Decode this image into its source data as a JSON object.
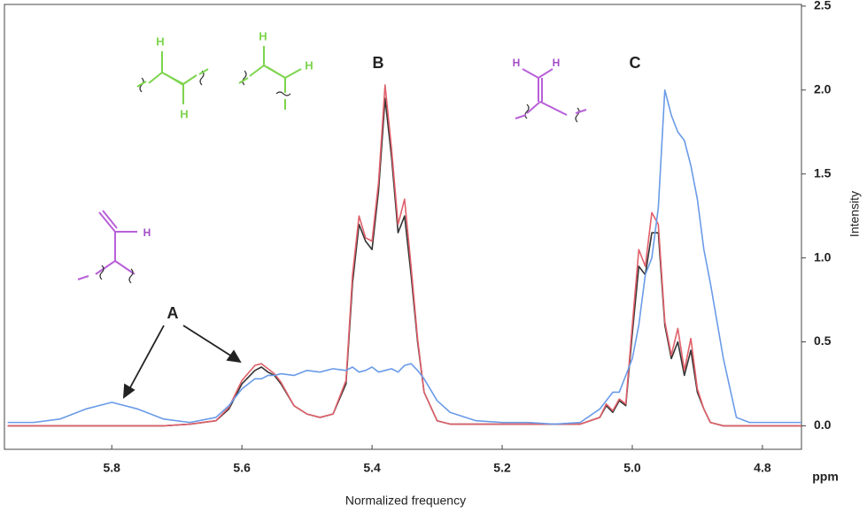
{
  "chart_data": {
    "type": "line",
    "x": [
      5.96,
      5.92,
      5.88,
      5.84,
      5.8,
      5.76,
      5.72,
      5.68,
      5.64,
      5.62,
      5.6,
      5.58,
      5.57,
      5.56,
      5.55,
      5.54,
      5.52,
      5.5,
      5.48,
      5.46,
      5.44,
      5.43,
      5.42,
      5.41,
      5.4,
      5.39,
      5.38,
      5.37,
      5.36,
      5.35,
      5.34,
      5.33,
      5.32,
      5.3,
      5.28,
      5.24,
      5.2,
      5.16,
      5.12,
      5.08,
      5.05,
      5.04,
      5.03,
      5.02,
      5.01,
      5.0,
      4.99,
      4.98,
      4.97,
      4.96,
      4.95,
      4.94,
      4.93,
      4.92,
      4.91,
      4.9,
      4.89,
      4.88,
      4.86,
      4.84,
      4.82,
      4.8,
      4.76,
      4.74
    ],
    "series": [
      {
        "color": "#333333",
        "values": [
          0,
          0,
          0,
          0,
          0,
          0,
          0,
          0.01,
          0.03,
          0.1,
          0.25,
          0.33,
          0.35,
          0.32,
          0.3,
          0.25,
          0.12,
          0.07,
          0.05,
          0.07,
          0.25,
          0.85,
          1.2,
          1.1,
          1.05,
          1.4,
          1.95,
          1.6,
          1.15,
          1.25,
          0.9,
          0.5,
          0.2,
          0.03,
          0.01,
          0.01,
          0.01,
          0.01,
          0.01,
          0.01,
          0.05,
          0.12,
          0.08,
          0.15,
          0.12,
          0.55,
          0.95,
          0.9,
          1.15,
          1.15,
          0.6,
          0.4,
          0.5,
          0.3,
          0.45,
          0.2,
          0.1,
          0.02,
          0,
          0,
          0,
          0,
          0,
          0
        ]
      },
      {
        "color": "#e0606a",
        "values": [
          0,
          0,
          0,
          0,
          0,
          0,
          0,
          0.01,
          0.03,
          0.11,
          0.27,
          0.36,
          0.37,
          0.34,
          0.31,
          0.26,
          0.12,
          0.07,
          0.05,
          0.07,
          0.27,
          0.9,
          1.25,
          1.12,
          1.1,
          1.45,
          2.03,
          1.65,
          1.2,
          1.35,
          0.95,
          0.52,
          0.2,
          0.03,
          0.01,
          0.01,
          0.01,
          0.01,
          0.01,
          0.01,
          0.05,
          0.13,
          0.09,
          0.16,
          0.13,
          0.6,
          1.05,
          0.95,
          1.27,
          1.2,
          0.62,
          0.42,
          0.58,
          0.33,
          0.52,
          0.22,
          0.1,
          0.02,
          0,
          0,
          0,
          0,
          0,
          0
        ]
      },
      {
        "color": "#6a9be8",
        "values": [
          0.02,
          0.02,
          0.04,
          0.1,
          0.14,
          0.1,
          0.04,
          0.02,
          0.05,
          0.12,
          0.22,
          0.28,
          0.28,
          0.3,
          0.3,
          0.31,
          0.3,
          0.33,
          0.32,
          0.34,
          0.33,
          0.35,
          0.32,
          0.33,
          0.35,
          0.32,
          0.33,
          0.34,
          0.32,
          0.36,
          0.37,
          0.33,
          0.28,
          0.15,
          0.08,
          0.03,
          0.02,
          0.02,
          0.01,
          0.02,
          0.1,
          0.15,
          0.2,
          0.2,
          0.3,
          0.4,
          0.6,
          0.9,
          1.0,
          1.3,
          2.0,
          1.85,
          1.75,
          1.7,
          1.55,
          1.35,
          1.05,
          0.85,
          0.4,
          0.05,
          0.02,
          0.02,
          0.02,
          0.02
        ]
      }
    ],
    "xlim": [
      5.965,
      4.74
    ],
    "xticks": [
      5.8,
      5.6,
      5.4,
      5.2,
      {
        "value": 5,
        "label": "5.0"
      },
      4.8
    ],
    "ylim": [
      -0.14,
      2.51
    ],
    "yticks": [
      {
        "value": 0,
        "label": "0.0"
      },
      0.5,
      {
        "value": 1,
        "label": "1.0"
      },
      1.5,
      {
        "value": 2,
        "label": "2.0"
      },
      2.5
    ],
    "xlabel": "Normalized frequency",
    "xunit": "ppm",
    "ylabel": "Intensity",
    "annotations": [
      "A",
      "B",
      "C"
    ]
  },
  "structures": [
    [
      "H",
      "H"
    ],
    [
      "H",
      "H"
    ],
    [
      "H",
      "H"
    ],
    [
      "H"
    ]
  ]
}
